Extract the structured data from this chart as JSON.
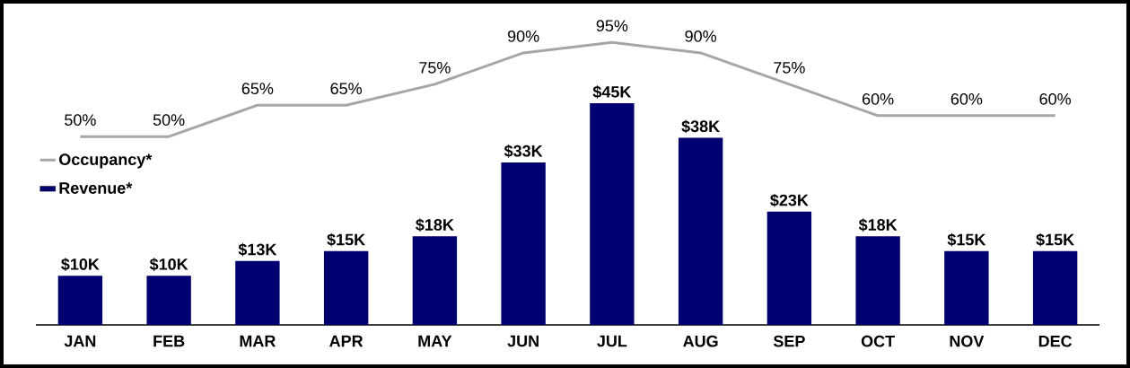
{
  "chart_data": {
    "type": "bar",
    "categories": [
      "JAN",
      "FEB",
      "MAR",
      "APR",
      "MAY",
      "JUN",
      "JUL",
      "AUG",
      "SEP",
      "OCT",
      "NOV",
      "DEC"
    ],
    "series": [
      {
        "name": "Revenue*",
        "color": "#000070",
        "values": [
          10,
          10,
          13,
          15,
          18,
          33,
          45,
          38,
          23,
          18,
          15,
          15
        ],
        "value_labels": [
          "$10K",
          "$10K",
          "$13K",
          "$15K",
          "$18K",
          "$33K",
          "$45K",
          "$38K",
          "$23K",
          "$18K",
          "$15K",
          "$15K"
        ]
      },
      {
        "name": "Occupancy*",
        "type": "line",
        "axis": "y2",
        "color": "#a6a6a6",
        "values": [
          50,
          50,
          65,
          65,
          75,
          90,
          95,
          90,
          75,
          60,
          60,
          60
        ],
        "value_labels": [
          "50%",
          "50%",
          "65%",
          "65%",
          "75%",
          "90%",
          "95%",
          "90%",
          "75%",
          "60%",
          "60%",
          "60%"
        ]
      }
    ],
    "tick_labels": "x",
    "legend": "left",
    "marker": "none",
    "line_style": "solid"
  }
}
